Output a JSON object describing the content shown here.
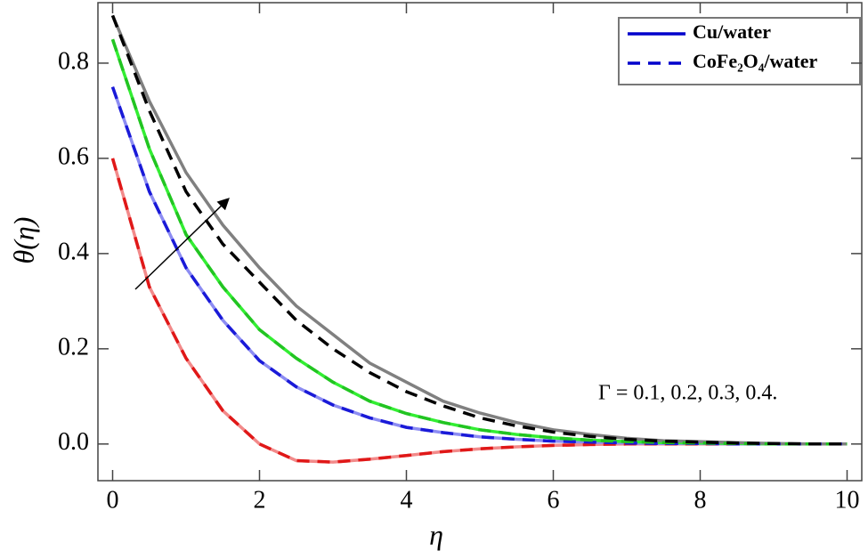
{
  "chart_data": {
    "type": "line",
    "xlabel": "η",
    "ylabel": "θ(η)",
    "annotation": "Γ  = 0.1, 0.2, 0.3, 0.4.",
    "xlim": [
      -0.2,
      10.2
    ],
    "ylim": [
      -0.077,
      0.927
    ],
    "xticks": [
      0,
      2,
      4,
      6,
      8,
      10
    ],
    "yticks": [
      {
        "value": 0,
        "label": "0.0"
      },
      0.2,
      0.4,
      0.6,
      0.8
    ],
    "x": [
      0,
      0.5,
      1,
      1.5,
      2,
      2.5,
      3,
      3.5,
      4,
      4.5,
      5,
      5.5,
      6,
      6.5,
      7,
      7.5,
      8,
      8.5,
      9,
      9.5,
      10
    ],
    "legend": [
      {
        "label": "Cu/water",
        "style": "solid",
        "color": "#0000cc"
      },
      {
        "label": "CoFe₂O₄/water",
        "style": "dashed",
        "color": "#0000cc"
      }
    ],
    "series": [
      {
        "style": "solid",
        "color": "#f28a8a",
        "values": [
          0.6,
          0.33,
          0.18,
          0.07,
          0.0,
          -0.035,
          -0.038,
          -0.032,
          -0.024,
          -0.016,
          -0.01,
          -0.006,
          -0.003,
          -0.001,
          0,
          0,
          0,
          0,
          0,
          0,
          0
        ]
      },
      {
        "style": "solid",
        "color": "#8c8cf2",
        "values": [
          0.75,
          0.53,
          0.37,
          0.26,
          0.175,
          0.12,
          0.082,
          0.055,
          0.035,
          0.024,
          0.015,
          0.01,
          0.006,
          0.004,
          0.002,
          0.001,
          0.001,
          0,
          0,
          0,
          0
        ]
      },
      {
        "style": "solid",
        "color": "#33ee33",
        "values": [
          0.85,
          0.62,
          0.44,
          0.33,
          0.24,
          0.18,
          0.13,
          0.09,
          0.064,
          0.045,
          0.03,
          0.02,
          0.013,
          0.008,
          0.005,
          0.003,
          0.002,
          0.001,
          0,
          0,
          0
        ]
      },
      {
        "style": "solid",
        "color": "#808080",
        "values": [
          0.9,
          0.72,
          0.57,
          0.46,
          0.37,
          0.29,
          0.23,
          0.17,
          0.13,
          0.09,
          0.065,
          0.045,
          0.03,
          0.02,
          0.012,
          0.007,
          0.005,
          0.003,
          0.001,
          0,
          0
        ]
      },
      {
        "style": "dashed",
        "color": "#e01818",
        "values": [
          0.6,
          0.33,
          0.18,
          0.07,
          0.0,
          -0.035,
          -0.038,
          -0.032,
          -0.024,
          -0.016,
          -0.01,
          -0.006,
          -0.003,
          -0.001,
          0,
          0,
          0,
          0,
          0,
          0,
          0
        ]
      },
      {
        "style": "dashed",
        "color": "#1a1ad8",
        "values": [
          0.75,
          0.53,
          0.37,
          0.26,
          0.175,
          0.12,
          0.082,
          0.055,
          0.035,
          0.024,
          0.015,
          0.01,
          0.006,
          0.004,
          0.002,
          0.001,
          0.001,
          0,
          0,
          0,
          0
        ]
      },
      {
        "style": "dashed",
        "color": "#22c422",
        "values": [
          0.85,
          0.62,
          0.44,
          0.33,
          0.24,
          0.18,
          0.13,
          0.09,
          0.064,
          0.045,
          0.03,
          0.02,
          0.013,
          0.008,
          0.005,
          0.003,
          0.002,
          0.001,
          0,
          0,
          0
        ]
      },
      {
        "style": "dashed",
        "color": "#000000",
        "values": [
          0.9,
          0.7,
          0.53,
          0.42,
          0.34,
          0.26,
          0.2,
          0.15,
          0.11,
          0.08,
          0.055,
          0.038,
          0.025,
          0.016,
          0.01,
          0.006,
          0.004,
          0.002,
          0.001,
          0,
          0
        ]
      }
    ]
  }
}
